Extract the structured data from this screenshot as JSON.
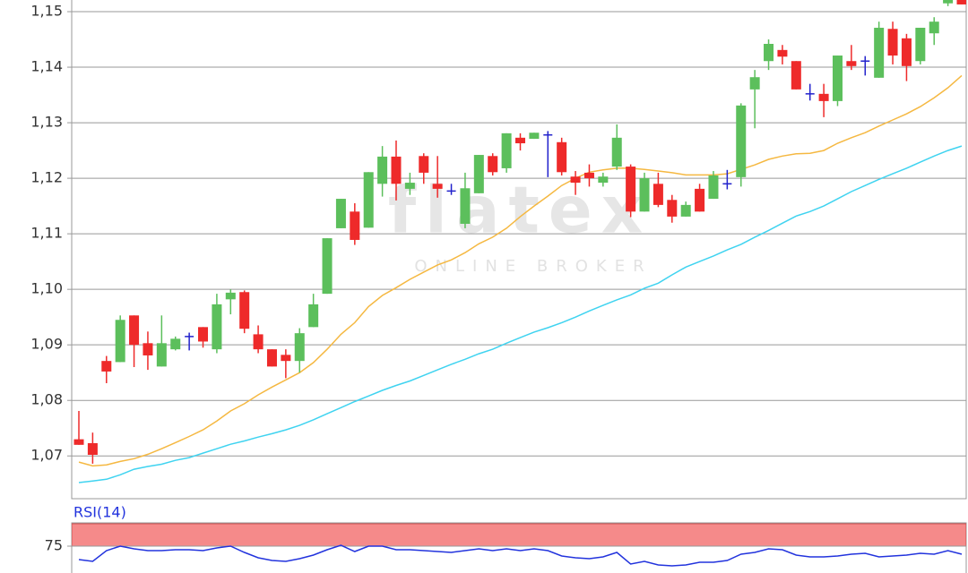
{
  "chart_data": [
    {
      "type": "candlestick",
      "watermark": "flatex",
      "watermark_subtitle": "ONLINE BROKER",
      "up_color": "#5cbf5c",
      "down_color": "#ee2a2a",
      "flat_color": "#2222cc",
      "open": [
        1.073,
        1.0723,
        1.0871,
        1.0869,
        1.0953,
        1.0903,
        1.0861,
        1.0892,
        1.0915,
        1.0932,
        1.0892,
        1.0982,
        1.0995,
        1.0919,
        1.0892,
        1.0882,
        1.0871,
        1.0932,
        1.0992,
        1.111,
        1.114,
        1.1111,
        1.119,
        1.1239,
        1.1181,
        1.124,
        1.119,
        1.1177,
        1.1118,
        1.1173,
        1.124,
        1.1218,
        1.1273,
        1.1271,
        1.1278,
        1.1265,
        1.1203,
        1.121,
        1.1192,
        1.1221,
        1.1221,
        1.114,
        1.119,
        1.1161,
        1.1131,
        1.1181,
        1.1163,
        1.119,
        1.1202,
        1.136,
        1.1411,
        1.1431,
        1.1411,
        1.1352,
        1.1352,
        1.1339,
        1.1411,
        1.1411,
        1.1381,
        1.1469,
        1.1452,
        1.1411,
        1.1461,
        1.1515,
        1.1521
      ],
      "high": [
        1.0781,
        1.0742,
        1.088,
        1.0953,
        1.0953,
        1.0924,
        1.0953,
        1.0915,
        1.0922,
        1.0932,
        1.0992,
        1.1,
        1.0998,
        1.0935,
        1.0892,
        1.0892,
        1.093,
        1.0992,
        1.1092,
        1.1163,
        1.1155,
        1.1211,
        1.1258,
        1.1268,
        1.121,
        1.1245,
        1.124,
        1.119,
        1.121,
        1.1242,
        1.1245,
        1.1281,
        1.1281,
        1.1282,
        1.1285,
        1.1273,
        1.1213,
        1.1225,
        1.121,
        1.1297,
        1.1225,
        1.121,
        1.121,
        1.117,
        1.1158,
        1.119,
        1.1213,
        1.1215,
        1.1335,
        1.1395,
        1.145,
        1.144,
        1.1411,
        1.137,
        1.137,
        1.1421,
        1.144,
        1.142,
        1.1482,
        1.1482,
        1.146,
        1.1471,
        1.149,
        1.1521,
        1.1521
      ],
      "low": [
        1.072,
        1.0686,
        1.0831,
        1.0869,
        1.086,
        1.0855,
        1.0861,
        1.089,
        1.089,
        1.0895,
        1.0885,
        1.0955,
        1.0921,
        1.0885,
        1.0861,
        1.084,
        1.085,
        1.0932,
        1.0992,
        1.111,
        1.108,
        1.1111,
        1.1167,
        1.116,
        1.117,
        1.119,
        1.1165,
        1.117,
        1.111,
        1.1173,
        1.1205,
        1.121,
        1.125,
        1.1271,
        1.1202,
        1.1205,
        1.117,
        1.1185,
        1.1185,
        1.1215,
        1.113,
        1.114,
        1.1148,
        1.112,
        1.1131,
        1.114,
        1.1163,
        1.118,
        1.1185,
        1.129,
        1.1395,
        1.1405,
        1.136,
        1.134,
        1.131,
        1.133,
        1.1395,
        1.1385,
        1.1381,
        1.1405,
        1.1375,
        1.1405,
        1.144,
        1.151,
        1.1513
      ],
      "close": [
        1.072,
        1.0702,
        1.0852,
        1.0945,
        1.09,
        1.0881,
        1.0903,
        1.0911,
        1.0915,
        1.0906,
        1.0973,
        1.0994,
        1.0929,
        1.0892,
        1.0861,
        1.0871,
        1.0921,
        1.0973,
        1.1092,
        1.1163,
        1.1089,
        1.1211,
        1.1239,
        1.119,
        1.1192,
        1.121,
        1.1181,
        1.1177,
        1.1182,
        1.1242,
        1.1211,
        1.1281,
        1.1263,
        1.1282,
        1.1278,
        1.1211,
        1.1192,
        1.12,
        1.1203,
        1.1273,
        1.114,
        1.12,
        1.1152,
        1.1131,
        1.1152,
        1.114,
        1.1205,
        1.119,
        1.1331,
        1.1382,
        1.1442,
        1.1419,
        1.136,
        1.1352,
        1.1339,
        1.1421,
        1.1402,
        1.1411,
        1.1471,
        1.1421,
        1.1402,
        1.1471,
        1.1482,
        1.1521,
        1.1513
      ],
      "overlays": [
        {
          "color": "#f5b841",
          "values": [
            1.0689,
            1.0682,
            1.0684,
            1.069,
            1.0695,
            1.0703,
            1.0713,
            1.0724,
            1.0735,
            1.0747,
            1.0763,
            1.0781,
            1.0794,
            1.081,
            1.0824,
            1.0837,
            1.085,
            1.0868,
            1.0892,
            1.0919,
            1.094,
            1.0969,
            1.0989,
            1.1003,
            1.1018,
            1.1031,
            1.1044,
            1.1053,
            1.1066,
            1.1082,
            1.1094,
            1.111,
            1.1131,
            1.115,
            1.1168,
            1.1187,
            1.12,
            1.1211,
            1.1215,
            1.1218,
            1.1218,
            1.1216,
            1.1213,
            1.121,
            1.1206,
            1.1206,
            1.1206,
            1.1208,
            1.1216,
            1.1224,
            1.1234,
            1.124,
            1.1244,
            1.1245,
            1.125,
            1.1263,
            1.1273,
            1.1282,
            1.1294,
            1.1305,
            1.1316,
            1.1329,
            1.1345,
            1.1363,
            1.1385
          ]
        },
        {
          "color": "#3fd3f0",
          "values": [
            1.0652,
            1.0655,
            1.0658,
            1.0666,
            1.0676,
            1.0681,
            1.0685,
            1.0692,
            1.0697,
            1.0705,
            1.0713,
            1.0721,
            1.0727,
            1.0734,
            1.074,
            1.0747,
            1.0755,
            1.0765,
            1.0776,
            1.0787,
            1.0798,
            1.0808,
            1.0818,
            1.0827,
            1.0835,
            1.0845,
            1.0855,
            1.0865,
            1.0874,
            1.0884,
            1.0892,
            1.0903,
            1.0913,
            1.0923,
            1.0931,
            1.094,
            1.095,
            1.0961,
            1.0971,
            1.0981,
            1.099,
            1.1002,
            1.1011,
            1.1026,
            1.104,
            1.105,
            1.106,
            1.1071,
            1.1081,
            1.1094,
            1.1106,
            1.1119,
            1.1132,
            1.114,
            1.115,
            1.1163,
            1.1176,
            1.1187,
            1.1198,
            1.1208,
            1.1218,
            1.1229,
            1.124,
            1.125,
            1.1258
          ]
        }
      ],
      "ylim": [
        1.0623,
        1.1521
      ],
      "yticks": [
        {
          "value": 1.07,
          "label": "1,07"
        },
        {
          "value": 1.08,
          "label": "1,08"
        },
        {
          "value": 1.09,
          "label": "1,09"
        },
        {
          "value": 1.1,
          "label": "1,10"
        },
        {
          "value": 1.11,
          "label": "1,11"
        },
        {
          "value": 1.12,
          "label": "1,12"
        },
        {
          "value": 1.13,
          "label": "1,13"
        },
        {
          "value": 1.14,
          "label": "1,14"
        },
        {
          "value": 1.15,
          "label": "1,15"
        }
      ],
      "grid": true
    },
    {
      "type": "line",
      "title": "RSI(14)",
      "color": "#2233dd",
      "values": [
        60,
        58,
        70,
        75,
        72,
        70,
        70,
        71,
        71,
        70,
        73,
        75,
        68,
        62,
        59,
        58,
        61,
        65,
        71,
        76,
        69,
        75,
        75,
        71,
        71,
        70,
        69,
        68,
        70,
        72,
        70,
        72,
        70,
        72,
        70,
        64,
        62,
        61,
        63,
        68,
        55,
        58,
        54,
        53,
        54,
        57,
        57,
        59,
        66,
        68,
        72,
        71,
        65,
        63,
        63,
        64,
        66,
        67,
        63,
        64,
        65,
        67,
        66,
        70,
        66
      ],
      "band": [
        75,
        100
      ],
      "band_color": "#f58a8a",
      "ylim": [
        45,
        100
      ],
      "yticks": [
        75
      ],
      "grid": true
    }
  ]
}
